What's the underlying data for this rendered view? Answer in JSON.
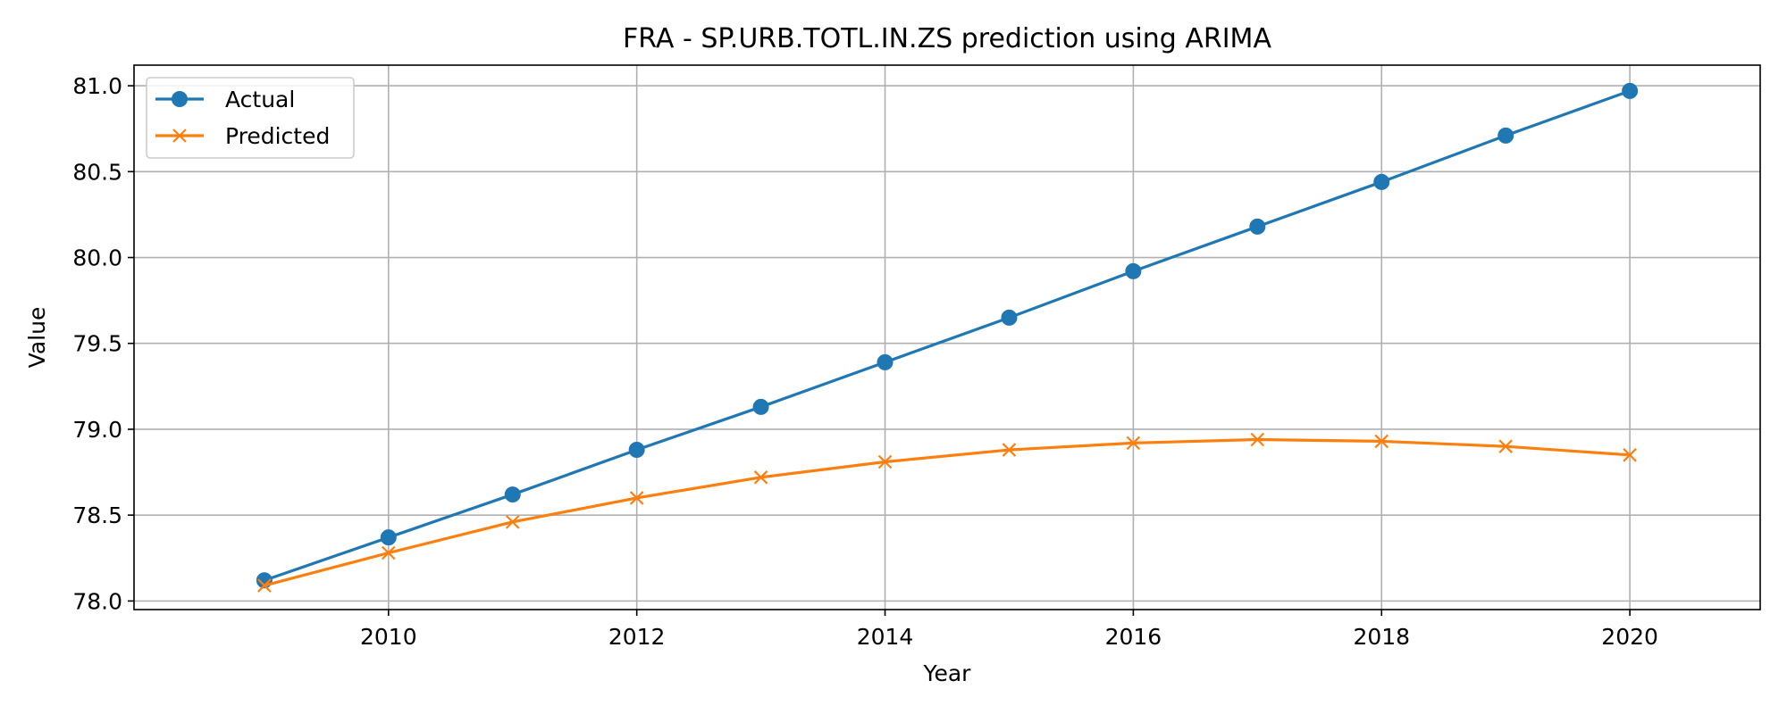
{
  "chart_data": {
    "type": "line",
    "title": "FRA - SP.URB.TOTL.IN.ZS prediction using ARIMA",
    "xlabel": "Year",
    "ylabel": "Value",
    "x": [
      2009,
      2010,
      2011,
      2012,
      2013,
      2014,
      2015,
      2016,
      2017,
      2018,
      2019,
      2020
    ],
    "xlim": [
      2007.95,
      2021.05
    ],
    "ylim": [
      77.95,
      81.12
    ],
    "xticks": [
      2010,
      2012,
      2014,
      2016,
      2018,
      2020
    ],
    "xtick_labels": [
      "2010",
      "2012",
      "2014",
      "2016",
      "2018",
      "2020"
    ],
    "yticks": [
      78.0,
      78.5,
      79.0,
      79.5,
      80.0,
      80.5,
      81.0
    ],
    "ytick_labels": [
      "78.0",
      "78.5",
      "79.0",
      "79.5",
      "80.0",
      "80.5",
      "81.0"
    ],
    "grid": true,
    "legend_position": "upper-left",
    "series": [
      {
        "name": "Actual",
        "color": "#1f77b4",
        "marker": "circle",
        "values": [
          78.12,
          78.37,
          78.62,
          78.88,
          79.13,
          79.39,
          79.65,
          79.92,
          80.18,
          80.44,
          80.71,
          80.97
        ]
      },
      {
        "name": "Predicted",
        "color": "#ff7f0e",
        "marker": "x",
        "values": [
          78.09,
          78.28,
          78.46,
          78.6,
          78.72,
          78.81,
          78.88,
          78.92,
          78.94,
          78.93,
          78.9,
          78.85
        ]
      }
    ]
  }
}
